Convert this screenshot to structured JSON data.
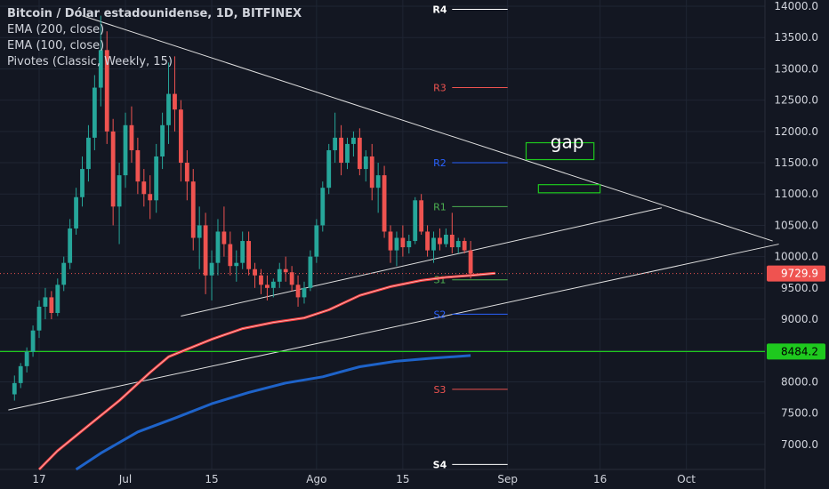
{
  "legend": {
    "title": "Bitcoin / Dólar estadounidense, 1D, BITFINEX",
    "ema200": "EMA (200, close)",
    "ema100": "EMA (100, close)",
    "pivots": "Pivotes (Classic, Weekly, 15)"
  },
  "colors": {
    "background": "#131722",
    "up": "#26a69a",
    "down": "#ef5350",
    "ema_fast": "#f23e3e",
    "ema_slow": "#1e63c9",
    "hline": "#1ec91e",
    "trend": "#e0e0e0",
    "gap_box": "#1ec91e",
    "pivot_r": "#ef5350",
    "pivot_s": "#2962ff",
    "pivot_r1": "#4caf50"
  },
  "annotation": {
    "gap_text": "gap"
  },
  "price_tags": [
    {
      "label": "9729.9",
      "value": 9729.9,
      "color": "#ef5350"
    },
    {
      "label": "8484.2",
      "value": 8484.2,
      "color": "#1ec91e"
    }
  ],
  "chart_data": {
    "type": "candlestick",
    "title": "Bitcoin / Dólar estadounidense, 1D, BITFINEX",
    "ylim": [
      6600,
      14100
    ],
    "y_ticks": [
      "14000.0",
      "13500.0",
      "13000.0",
      "12500.0",
      "12000.0",
      "11500.0",
      "11000.0",
      "10500.0",
      "10000.0",
      "9500.0",
      "9000.0",
      "8500.0",
      "8000.0",
      "7500.0",
      "7000.0"
    ],
    "x_ticks": [
      {
        "label": "17",
        "day": 0
      },
      {
        "label": "Jul",
        "day": 14
      },
      {
        "label": "15",
        "day": 28
      },
      {
        "label": "Ago",
        "day": 45
      },
      {
        "label": "15",
        "day": 59
      },
      {
        "label": "Sep",
        "day": 76
      },
      {
        "label": "16",
        "day": 91
      },
      {
        "label": "Oct",
        "day": 105
      }
    ],
    "x_domain_days": [
      -5,
      120
    ],
    "pivots": [
      {
        "name": "R4",
        "value": 13950,
        "color": "#ffffff"
      },
      {
        "name": "R3",
        "value": 12700,
        "color": "#ef5350"
      },
      {
        "name": "R2",
        "value": 11500,
        "color": "#2962ff"
      },
      {
        "name": "R1",
        "value": 10800,
        "color": "#4caf50"
      },
      {
        "name": "S1",
        "value": 9630,
        "color": "#4caf50"
      },
      {
        "name": "S2",
        "value": 9080,
        "color": "#2962ff"
      },
      {
        "name": "S3",
        "value": 7880,
        "color": "#ef5350"
      },
      {
        "name": "S4",
        "value": 6680,
        "color": "#ffffff"
      }
    ],
    "pivot_span_days": [
      67,
      76
    ],
    "pivot_label_day": 65,
    "hline": 8484.2,
    "last_price": 9729.9,
    "candles": [
      [
        7800,
        8100,
        7700,
        7980
      ],
      [
        7980,
        8300,
        7900,
        8250
      ],
      [
        8250,
        8550,
        8150,
        8480
      ],
      [
        8480,
        8900,
        8400,
        8820
      ],
      [
        8820,
        9300,
        8700,
        9200
      ],
      [
        9200,
        9500,
        9000,
        9350
      ],
      [
        9350,
        9450,
        9000,
        9100
      ],
      [
        9100,
        9650,
        9050,
        9550
      ],
      [
        9550,
        10000,
        9450,
        9900
      ],
      [
        9900,
        10600,
        9800,
        10450
      ],
      [
        10450,
        11100,
        10350,
        10950
      ],
      [
        10950,
        11600,
        10800,
        11400
      ],
      [
        11400,
        12100,
        11200,
        11900
      ],
      [
        11900,
        12900,
        11700,
        12700
      ],
      [
        12700,
        13850,
        12400,
        13300
      ],
      [
        13300,
        13600,
        11800,
        12000
      ],
      [
        12000,
        12200,
        10500,
        10800
      ],
      [
        10800,
        11500,
        10200,
        11300
      ],
      [
        11300,
        12300,
        11100,
        12100
      ],
      [
        12100,
        12400,
        11500,
        11700
      ],
      [
        11700,
        11900,
        11000,
        11200
      ],
      [
        11200,
        11400,
        10800,
        11000
      ],
      [
        11000,
        11300,
        10600,
        10900
      ],
      [
        10900,
        11800,
        10700,
        11600
      ],
      [
        11600,
        12300,
        11400,
        12100
      ],
      [
        12100,
        13100,
        11800,
        12600
      ],
      [
        12600,
        13200,
        12000,
        12350
      ],
      [
        12350,
        12500,
        11200,
        11500
      ],
      [
        11500,
        11700,
        10900,
        11200
      ],
      [
        11200,
        11400,
        10100,
        10300
      ],
      [
        10300,
        10800,
        9800,
        10500
      ],
      [
        10500,
        10700,
        9400,
        9700
      ],
      [
        9700,
        10100,
        9300,
        9900
      ],
      [
        9900,
        10600,
        9700,
        10400
      ],
      [
        10400,
        10800,
        10000,
        10200
      ],
      [
        10200,
        10400,
        9700,
        9850
      ],
      [
        9850,
        10100,
        9600,
        9900
      ],
      [
        9900,
        10400,
        9800,
        10250
      ],
      [
        10250,
        10400,
        9700,
        9800
      ],
      [
        9800,
        9900,
        9500,
        9700
      ],
      [
        9700,
        9800,
        9400,
        9550
      ],
      [
        9550,
        9700,
        9300,
        9500
      ],
      [
        9500,
        9650,
        9350,
        9600
      ],
      [
        9600,
        9900,
        9500,
        9800
      ],
      [
        9800,
        10000,
        9600,
        9750
      ],
      [
        9750,
        9850,
        9450,
        9550
      ],
      [
        9550,
        9700,
        9200,
        9350
      ],
      [
        9350,
        9600,
        9250,
        9500
      ],
      [
        9500,
        10100,
        9450,
        10000
      ],
      [
        10000,
        10600,
        9900,
        10500
      ],
      [
        10500,
        11200,
        10400,
        11100
      ],
      [
        11100,
        11800,
        11000,
        11700
      ],
      [
        11700,
        12300,
        11500,
        11900
      ],
      [
        11900,
        12100,
        11300,
        11500
      ],
      [
        11500,
        11900,
        11400,
        11800
      ],
      [
        11800,
        12000,
        11600,
        11900
      ],
      [
        11900,
        12050,
        11300,
        11400
      ],
      [
        11400,
        11700,
        11200,
        11600
      ],
      [
        11600,
        11800,
        10900,
        11100
      ],
      [
        11100,
        11500,
        10700,
        11300
      ],
      [
        11300,
        11450,
        10300,
        10400
      ],
      [
        10400,
        10500,
        9900,
        10100
      ],
      [
        10100,
        10400,
        9850,
        10300
      ],
      [
        10300,
        10500,
        10000,
        10150
      ],
      [
        10150,
        10350,
        10050,
        10250
      ],
      [
        10250,
        10950,
        10200,
        10900
      ],
      [
        10900,
        11000,
        10350,
        10400
      ],
      [
        10400,
        10500,
        10000,
        10100
      ],
      [
        10100,
        10400,
        9900,
        10300
      ],
      [
        10300,
        10450,
        10100,
        10200
      ],
      [
        10200,
        10450,
        10150,
        10350
      ],
      [
        10350,
        10700,
        10050,
        10150
      ],
      [
        10150,
        10300,
        10050,
        10250
      ],
      [
        10250,
        10300,
        10050,
        10100
      ],
      [
        10100,
        10250,
        9650,
        9730
      ]
    ],
    "ema_fast": [
      [
        0,
        6600
      ],
      [
        3,
        6900
      ],
      [
        8,
        7300
      ],
      [
        13,
        7700
      ],
      [
        18,
        8150
      ],
      [
        21,
        8400
      ],
      [
        24,
        8520
      ],
      [
        28,
        8680
      ],
      [
        33,
        8850
      ],
      [
        38,
        8950
      ],
      [
        43,
        9020
      ],
      [
        47,
        9150
      ],
      [
        52,
        9380
      ],
      [
        57,
        9520
      ],
      [
        62,
        9620
      ],
      [
        66,
        9670
      ],
      [
        70,
        9700
      ],
      [
        74,
        9735
      ]
    ],
    "ema_slow": [
      [
        6,
        6600
      ],
      [
        10,
        6860
      ],
      [
        16,
        7200
      ],
      [
        22,
        7420
      ],
      [
        28,
        7650
      ],
      [
        34,
        7830
      ],
      [
        40,
        7980
      ],
      [
        46,
        8080
      ],
      [
        52,
        8240
      ],
      [
        58,
        8330
      ],
      [
        64,
        8380
      ],
      [
        70,
        8420
      ]
    ],
    "trend_lines": [
      {
        "from": [
          -5,
          7550
        ],
        "to": [
          120,
          10200
        ]
      },
      {
        "from": [
          7,
          13850
        ],
        "to": [
          119,
          10250
        ]
      },
      {
        "from": [
          23,
          9050
        ],
        "to": [
          101,
          10780
        ]
      }
    ],
    "gap_boxes": [
      {
        "x": [
          79,
          90
        ],
        "y": [
          11550,
          11820
        ]
      },
      {
        "x": [
          81,
          91
        ],
        "y": [
          11020,
          11150
        ]
      }
    ]
  }
}
